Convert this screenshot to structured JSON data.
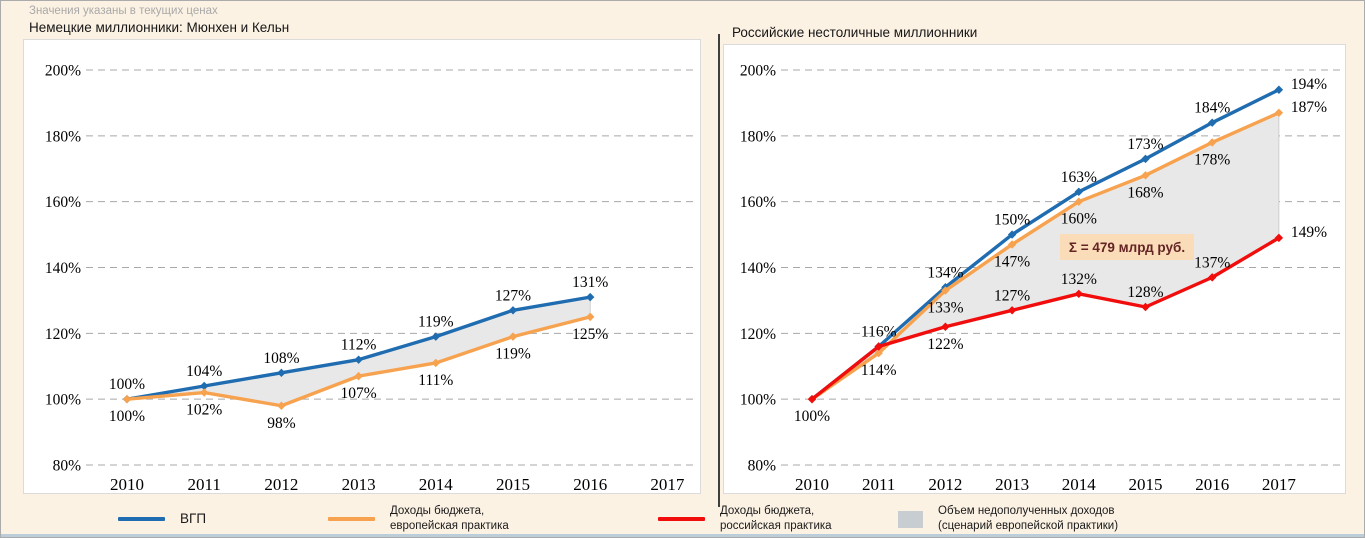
{
  "note": "Значения указаны в текущих ценах",
  "chart_data": [
    {
      "type": "line",
      "title": "Немецкие миллионники: Мюнхен и Кельн",
      "x": [
        "2010",
        "2011",
        "2012",
        "2013",
        "2014",
        "2015",
        "2016",
        "2017"
      ],
      "ylim": [
        80,
        200
      ],
      "yticks": [
        80,
        100,
        120,
        140,
        160,
        180,
        200
      ],
      "grid": "dashed-horizontal",
      "legend_position": "bottom",
      "area": {
        "upper": 0,
        "lower": 1,
        "fill": "#E8E8E8"
      },
      "series": [
        {
          "name": "ВГП",
          "color": "#1F6CB0",
          "values": [
            100,
            104,
            108,
            112,
            119,
            127,
            131
          ],
          "labels": [
            "100%",
            "104%",
            "108%",
            "112%",
            "119%",
            "127%",
            "131%"
          ],
          "label_side": "above"
        },
        {
          "name": "Доходы бюджета, европейская практика",
          "color": "#F7A24F",
          "values": [
            100,
            102,
            98,
            107,
            111,
            119,
            125
          ],
          "labels": [
            "100%",
            "102%",
            "98%",
            "107%",
            "111%",
            "119%",
            "125%"
          ],
          "label_side": "below"
        }
      ]
    },
    {
      "type": "line",
      "title": "Российские нестоличные миллионники",
      "x": [
        "2010",
        "2011",
        "2012",
        "2013",
        "2014",
        "2015",
        "2016",
        "2017"
      ],
      "ylim": [
        80,
        200
      ],
      "yticks": [
        80,
        100,
        120,
        140,
        160,
        180,
        200
      ],
      "grid": "dashed-horizontal",
      "legend_position": "bottom",
      "area": {
        "upper": 1,
        "lower": 2,
        "fill": "#E8E8E8"
      },
      "annotation": {
        "text": "Σ = 479 млрд руб.",
        "bg": "#FBDCB9",
        "color": "#632423"
      },
      "series": [
        {
          "name": "ВГП",
          "color": "#1F6CB0",
          "values": [
            100,
            116,
            134,
            150,
            163,
            173,
            184,
            194
          ],
          "labels": [
            "100%",
            "116%",
            "134%",
            "150%",
            "163%",
            "173%",
            "184%",
            "194%"
          ],
          "label_side": "above",
          "label_sides": [
            "none",
            "none",
            "above",
            "above",
            "above",
            "above",
            "above",
            "right"
          ]
        },
        {
          "name": "Доходы бюджета, европейская практика",
          "color": "#F7A24F",
          "values": [
            100,
            114,
            133,
            147,
            160,
            168,
            178,
            187
          ],
          "labels": [
            "100%",
            "114%",
            "133%",
            "147%",
            "160%",
            "168%",
            "178%",
            "187%"
          ],
          "label_side": "below",
          "label_sides": [
            "none",
            "below",
            "below",
            "below",
            "below",
            "below",
            "below",
            "right"
          ]
        },
        {
          "name": "Доходы бюджета, российская практика",
          "color": "#F20D0D",
          "values": [
            100,
            116,
            122,
            127,
            132,
            128,
            137,
            149
          ],
          "labels": [
            "100%",
            "116%",
            "122%",
            "127%",
            "132%",
            "128%",
            "137%",
            "149%"
          ],
          "label_side": "above",
          "label_sides": [
            "below",
            "above",
            "below",
            "above",
            "above",
            "above",
            "above",
            "right"
          ]
        }
      ]
    }
  ],
  "legend": [
    {
      "swatch": "line",
      "color": "#1F6CB0",
      "label": "ВГП"
    },
    {
      "swatch": "line",
      "color": "#F7A24F",
      "label": "Доходы бюджета,\nевропейская практика"
    },
    {
      "swatch": "line",
      "color": "#F20D0D",
      "label": "Доходы бюджета,\nроссийская практика"
    },
    {
      "swatch": "box",
      "color": "#C8CDD2",
      "label": "Объем недополученных доходов\n(сценарий европейской практики)"
    }
  ]
}
